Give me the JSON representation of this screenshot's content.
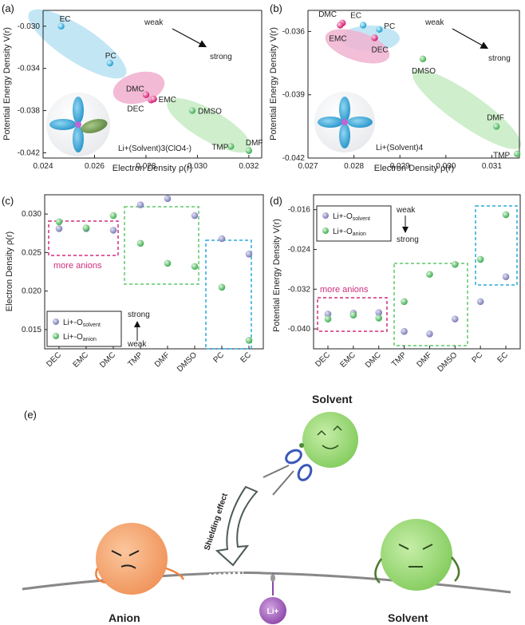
{
  "figure": {
    "colors": {
      "blue_pt": "#2aa7d8",
      "pink_pt": "#e5267c",
      "green_pt": "#59c36a",
      "blue_fill": "#b9e2f3",
      "pink_fill": "#f1b3d0",
      "green_fill": "#c9ecc6",
      "gray_pt": "#8d8dc4",
      "magenta_box": "#d02d7d",
      "green_box": "#5ec86a",
      "cyan_box": "#2ca9dc"
    },
    "panel_e": {
      "label": "(e)",
      "solvent_top": "Solvent",
      "shielding": "Shielding effect",
      "anion": "Anion",
      "solvent_bottom": "Solvent",
      "li": "Li+",
      "icons": [
        "scissors-icon",
        "curved-arrow-icon"
      ]
    }
  },
  "chart_data": [
    {
      "panel": "(a)",
      "type": "scatter",
      "xlabel": "Electron Density ρ(r)",
      "ylabel": "Potential Energy Density V(r)",
      "xlim": [
        0.024,
        0.0325
      ],
      "ylim": [
        -0.0425,
        -0.0285
      ],
      "xticks": [
        "0.024",
        "0.026",
        "0.028",
        "0.030",
        "0.032"
      ],
      "yticks": [
        "-0.030",
        "-0.034",
        "-0.038",
        "-0.042"
      ],
      "points": [
        {
          "label": "EC",
          "x": 0.0247,
          "y": -0.03,
          "group": "blue"
        },
        {
          "label": "PC",
          "x": 0.0266,
          "y": -0.0335,
          "group": "blue"
        },
        {
          "label": "DMC",
          "x": 0.028,
          "y": -0.0365,
          "group": "pink"
        },
        {
          "label": "DEC",
          "x": 0.0282,
          "y": -0.037,
          "group": "pink"
        },
        {
          "label": "EMC",
          "x": 0.0283,
          "y": -0.0369,
          "group": "pink"
        },
        {
          "label": "DMSO",
          "x": 0.0298,
          "y": -0.038,
          "group": "green"
        },
        {
          "label": "TMP",
          "x": 0.0313,
          "y": -0.0414,
          "group": "green"
        },
        {
          "label": "DMF",
          "x": 0.032,
          "y": -0.0418,
          "group": "green"
        }
      ],
      "annotations": {
        "weak": "weak",
        "strong": "strong",
        "complex": "Li+(Solvent)3(ClO4-)"
      }
    },
    {
      "panel": "(b)",
      "type": "scatter",
      "xlabel": "Electron Density ρ(r)",
      "ylabel": "Potential Energy Density V(r)",
      "xlim": [
        0.027,
        0.0316
      ],
      "ylim": [
        -0.042,
        -0.035
      ],
      "xticks": [
        "0.027",
        "0.028",
        "0.029",
        "0.030",
        "0.031"
      ],
      "yticks": [
        "-0.036",
        "-0.039",
        "-0.042"
      ],
      "points": [
        {
          "label": "DMC",
          "x": 0.02775,
          "y": -0.0356,
          "group": "pink"
        },
        {
          "label": "EC",
          "x": 0.0282,
          "y": -0.0357,
          "group": "blue"
        },
        {
          "label": "PC",
          "x": 0.02855,
          "y": -0.0359,
          "group": "blue"
        },
        {
          "label": "EMC",
          "x": 0.0277,
          "y": -0.0357,
          "group": "pink"
        },
        {
          "label": "DEC",
          "x": 0.02845,
          "y": -0.0363,
          "group": "pink"
        },
        {
          "label": "DMSO",
          "x": 0.0295,
          "y": -0.0373,
          "group": "green"
        },
        {
          "label": "DMF",
          "x": 0.0311,
          "y": -0.0405,
          "group": "green"
        },
        {
          "label": "TMP",
          "x": 0.03155,
          "y": -0.0418,
          "group": "green"
        }
      ],
      "annotations": {
        "weak": "weak",
        "strong": "strong",
        "complex": "Li+(Solvent)4"
      }
    },
    {
      "panel": "(c)",
      "type": "scatter",
      "ylabel": "Electron Density ρ(r)",
      "categories": [
        "DEC",
        "EMC",
        "DMC",
        "TMP",
        "DMF",
        "DMSO",
        "PC",
        "EC"
      ],
      "ylim": [
        0.0125,
        0.0325
      ],
      "yticks": [
        "0.015",
        "0.020",
        "0.025",
        "0.030"
      ],
      "series": [
        {
          "name": "Li+-O solvent",
          "values": [
            0.0281,
            0.0281,
            0.0279,
            0.0312,
            0.032,
            0.0298,
            0.0268,
            0.0248
          ]
        },
        {
          "name": "Li+-O anion",
          "values": [
            0.029,
            0.0282,
            0.0298,
            0.0262,
            0.0236,
            0.0232,
            0.0205,
            0.0136
          ]
        }
      ],
      "legend": {
        "solvent_main": "Li+-O",
        "solvent_sub": "solvent",
        "anion_main": "Li+-O",
        "anion_sub": "anion"
      },
      "annotations": {
        "more_anions": "more anions",
        "strong": "strong",
        "weak": "weak"
      }
    },
    {
      "panel": "(d)",
      "type": "scatter",
      "ylabel": "Potential Energy Density V(r)",
      "categories": [
        "DEC",
        "EMC",
        "DMC",
        "TMP",
        "DMF",
        "DMSO",
        "PC",
        "EC"
      ],
      "ylim": [
        -0.044,
        -0.013
      ],
      "yticks": [
        "-0.016",
        "-0.024",
        "-0.032",
        "-0.040"
      ],
      "series": [
        {
          "name": "Li+-O solvent",
          "values": [
            -0.037,
            -0.0368,
            -0.0367,
            -0.0405,
            -0.041,
            -0.038,
            -0.0345,
            -0.0295
          ]
        },
        {
          "name": "Li+-O anion",
          "values": [
            -0.038,
            -0.0372,
            -0.0378,
            -0.0345,
            -0.029,
            -0.027,
            -0.026,
            -0.017
          ]
        }
      ],
      "legend": {
        "solvent_main": "Li+-O",
        "solvent_sub": "solvent",
        "anion_main": "Li+-O",
        "anion_sub": "anion"
      },
      "annotations": {
        "more_anions": "more anions",
        "weak": "weak",
        "strong": "strong"
      }
    }
  ]
}
